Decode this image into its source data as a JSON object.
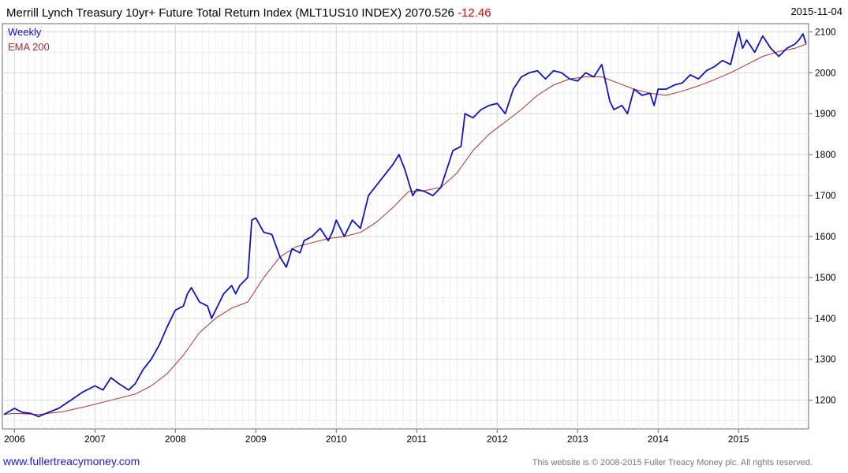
{
  "header": {
    "title": "Merrill Lynch Treasury 10yr+ Future Total Return Index (MLT1US10 INDEX) 2070.526",
    "change": "-12.46",
    "date": "2015-11-04"
  },
  "legend": {
    "series1": "Weekly",
    "series2": "EMA 200"
  },
  "footer": {
    "site": "www.fullertreacymoney.com",
    "copyright": "This website is © 2008-2015 Fuller Treacy Money plc. All rights reserved."
  },
  "chart_data": {
    "type": "line",
    "xlim": [
      2005.85,
      2015.87
    ],
    "ylim": [
      1130,
      2120
    ],
    "yticks": [
      1200,
      1300,
      1400,
      1500,
      1600,
      1700,
      1800,
      1900,
      2000,
      2100
    ],
    "xticks": [
      {
        "value": 2006,
        "label": "2006"
      },
      {
        "value": 2007,
        "label": "2007"
      },
      {
        "value": 2008,
        "label": "2008"
      },
      {
        "value": 2009,
        "label": "2009"
      },
      {
        "value": 2010,
        "label": "2010"
      },
      {
        "value": 2011,
        "label": "2011"
      },
      {
        "value": 2012,
        "label": "2012"
      },
      {
        "value": 2013,
        "label": "2013"
      },
      {
        "value": 2014,
        "label": "2014"
      },
      {
        "value": 2015,
        "label": "2015"
      }
    ],
    "grid": true,
    "legend_position": "top-left",
    "colors": {
      "weekly": "#1414b4",
      "ema": "#a83232",
      "grid": "#d8d8d8"
    },
    "series": [
      {
        "name": "Weekly",
        "x": [
          2005.87,
          2006.0,
          2006.1,
          2006.2,
          2006.3,
          2006.42,
          2006.55,
          2006.7,
          2006.85,
          2007.0,
          2007.1,
          2007.2,
          2007.3,
          2007.42,
          2007.5,
          2007.6,
          2007.7,
          2007.8,
          2007.9,
          2008.0,
          2008.1,
          2008.15,
          2008.2,
          2008.3,
          2008.4,
          2008.45,
          2008.55,
          2008.6,
          2008.7,
          2008.75,
          2008.8,
          2008.9,
          2008.95,
          2009.0,
          2009.1,
          2009.2,
          2009.3,
          2009.38,
          2009.45,
          2009.55,
          2009.6,
          2009.7,
          2009.8,
          2009.9,
          2009.95,
          2010.0,
          2010.1,
          2010.2,
          2010.3,
          2010.4,
          2010.5,
          2010.6,
          2010.7,
          2010.78,
          2010.85,
          2010.95,
          2011.0,
          2011.1,
          2011.2,
          2011.3,
          2011.4,
          2011.45,
          2011.55,
          2011.6,
          2011.7,
          2011.8,
          2011.9,
          2012.0,
          2012.1,
          2012.2,
          2012.3,
          2012.4,
          2012.5,
          2012.6,
          2012.7,
          2012.8,
          2012.9,
          2013.0,
          2013.1,
          2013.2,
          2013.3,
          2013.4,
          2013.45,
          2013.55,
          2013.62,
          2013.7,
          2013.8,
          2013.9,
          2013.95,
          2014.0,
          2014.1,
          2014.2,
          2014.3,
          2014.4,
          2014.5,
          2014.6,
          2014.7,
          2014.8,
          2014.9,
          2015.0,
          2015.05,
          2015.1,
          2015.2,
          2015.3,
          2015.4,
          2015.5,
          2015.6,
          2015.7,
          2015.75,
          2015.8,
          2015.84
        ],
        "values": [
          1165,
          1180,
          1170,
          1168,
          1160,
          1170,
          1180,
          1200,
          1220,
          1235,
          1225,
          1255,
          1240,
          1225,
          1240,
          1275,
          1300,
          1335,
          1380,
          1420,
          1430,
          1460,
          1475,
          1440,
          1430,
          1400,
          1440,
          1460,
          1480,
          1460,
          1480,
          1500,
          1640,
          1645,
          1610,
          1605,
          1550,
          1525,
          1570,
          1560,
          1590,
          1600,
          1620,
          1590,
          1610,
          1640,
          1600,
          1640,
          1620,
          1700,
          1725,
          1750,
          1775,
          1800,
          1765,
          1700,
          1715,
          1710,
          1700,
          1720,
          1780,
          1810,
          1820,
          1900,
          1890,
          1910,
          1920,
          1925,
          1900,
          1960,
          1990,
          2000,
          2005,
          1985,
          2005,
          2000,
          1985,
          1980,
          2000,
          1990,
          2020,
          1930,
          1910,
          1920,
          1900,
          1960,
          1945,
          1950,
          1920,
          1960,
          1960,
          1970,
          1975,
          1995,
          1985,
          2005,
          2015,
          2030,
          2020,
          2100,
          2060,
          2080,
          2050,
          2090,
          2060,
          2040,
          2060,
          2070,
          2080,
          2095,
          2071
        ]
      },
      {
        "name": "EMA 200",
        "x": [
          2005.87,
          2006.0,
          2006.3,
          2006.6,
          2006.9,
          2007.2,
          2007.5,
          2007.7,
          2007.9,
          2008.1,
          2008.3,
          2008.5,
          2008.7,
          2008.9,
          2009.1,
          2009.3,
          2009.5,
          2009.7,
          2009.9,
          2010.1,
          2010.3,
          2010.5,
          2010.7,
          2010.9,
          2011.1,
          2011.3,
          2011.5,
          2011.7,
          2011.9,
          2012.1,
          2012.3,
          2012.5,
          2012.7,
          2012.9,
          2013.1,
          2013.3,
          2013.5,
          2013.7,
          2013.9,
          2014.1,
          2014.3,
          2014.5,
          2014.7,
          2014.9,
          2015.1,
          2015.3,
          2015.5,
          2015.7,
          2015.84
        ],
        "values": [
          1165,
          1168,
          1165,
          1172,
          1185,
          1200,
          1215,
          1235,
          1265,
          1310,
          1365,
          1400,
          1425,
          1440,
          1500,
          1550,
          1575,
          1585,
          1595,
          1600,
          1610,
          1635,
          1670,
          1710,
          1712,
          1720,
          1755,
          1810,
          1850,
          1880,
          1910,
          1945,
          1970,
          1985,
          1990,
          1990,
          1975,
          1960,
          1950,
          1945,
          1955,
          1968,
          1983,
          2000,
          2020,
          2040,
          2052,
          2060,
          2070
        ]
      }
    ]
  }
}
